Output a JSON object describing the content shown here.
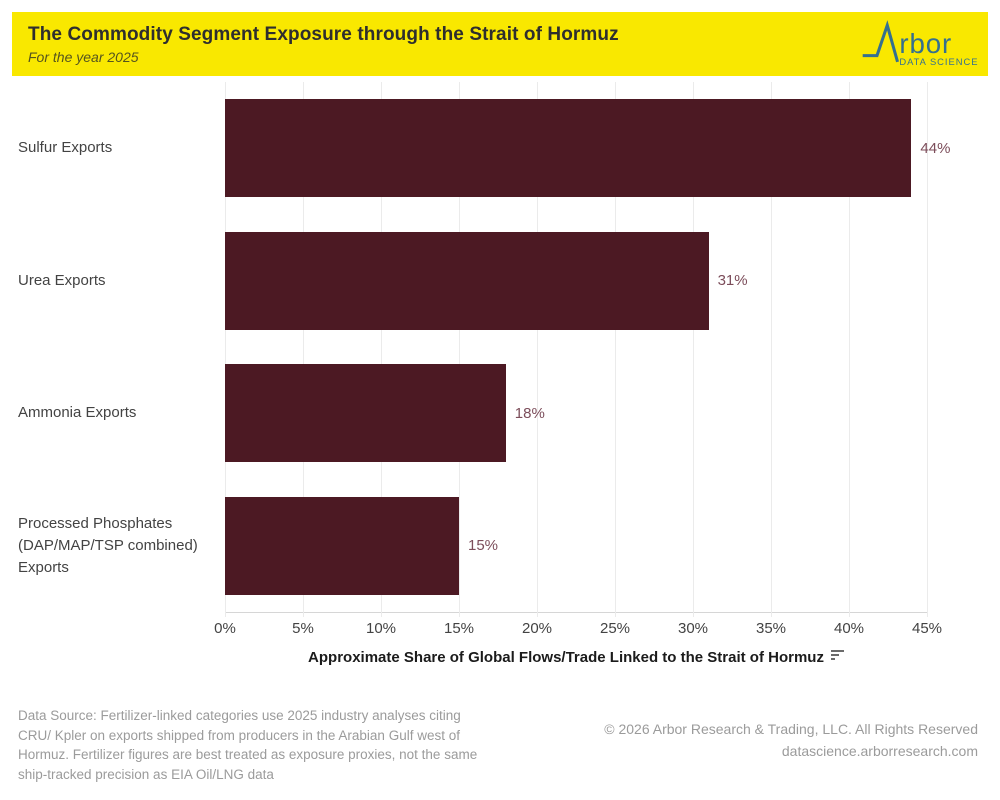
{
  "header": {
    "title": "The Commodity Segment Exposure through the Strait of Hormuz",
    "subtitle": "For the year 2025",
    "background_color": "#F9E800",
    "logo": {
      "brand_rest": "rbor",
      "tagline": "DATA SCIENCE",
      "color": "#35708F"
    }
  },
  "chart_data": {
    "type": "bar",
    "orientation": "horizontal",
    "title": "The Commodity Segment Exposure through the Strait of Hormuz",
    "subtitle": "For the year 2025",
    "categories": [
      "Sulfur Exports",
      "Urea Exports",
      "Ammonia Exports",
      "Processed Phosphates (DAP/MAP/TSP combined) Exports"
    ],
    "values": [
      44,
      31,
      18,
      15
    ],
    "value_labels": [
      "44%",
      "31%",
      "18%",
      "15%"
    ],
    "xlabel": "Approximate Share of Global Flows/Trade Linked to the Strait of Hormuz",
    "x_tick_labels": [
      "0%",
      "5%",
      "10%",
      "15%",
      "20%",
      "25%",
      "30%",
      "35%",
      "40%",
      "45%"
    ],
    "x_tick_values": [
      0,
      5,
      10,
      15,
      20,
      25,
      30,
      35,
      40,
      45
    ],
    "xlim": [
      0,
      45
    ],
    "grid": true,
    "bar_color": "#4C1923",
    "value_label_color": "#7C4D5A",
    "legend": "none"
  },
  "footer": {
    "note_lines": [
      "Data Source: Fertilizer-linked categories use 2025 industry analyses citing",
      "CRU/ Kpler on exports shipped from producers in the Arabian Gulf west of",
      "Hormuz. Fertilizer figures are best treated as exposure proxies, not the same",
      "ship-tracked precision as EIA Oil/LNG data"
    ],
    "copyright_lines": [
      "© 2026 Arbor Research & Trading, LLC. All Rights Reserved",
      "datascience.arborresearch.com"
    ]
  }
}
